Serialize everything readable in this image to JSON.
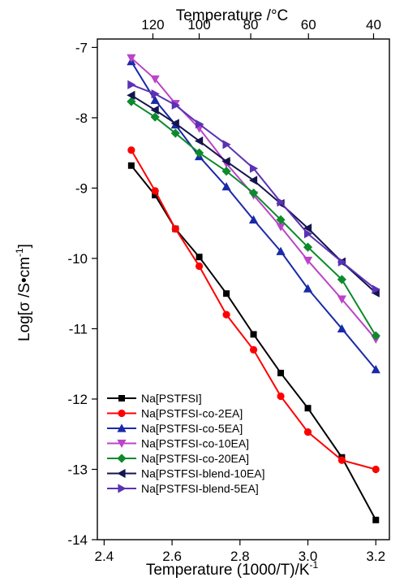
{
  "chart_data": {
    "type": "line",
    "title": "",
    "xlabel": "Temperature (1000/T)/K",
    "xlabel_superscript": "-1",
    "ylabel_main": "Log[σ /S•cm",
    "ylabel_superscript": "-1",
    "ylabel_close": "]",
    "top_xlabel": "Temperature /°C",
    "xlim": [
      2.38,
      3.24
    ],
    "ylim": [
      -14,
      -6.88
    ],
    "x_ticks": [
      2.4,
      2.6,
      2.8,
      3.0,
      3.2
    ],
    "x_tick_labels": [
      "2.4",
      "2.6",
      "2.8",
      "3.0",
      "3.2"
    ],
    "y_ticks": [
      -14,
      -13,
      -12,
      -11,
      -10,
      -9,
      -8,
      -7
    ],
    "y_tick_labels": [
      "-14",
      "-13",
      "-12",
      "-11",
      "-10",
      "-9",
      "-8",
      "-7"
    ],
    "top_ticks_celsius": [
      120,
      100,
      80,
      60,
      40
    ],
    "top_tick_labels": [
      "120",
      "100",
      "80",
      "60",
      "40"
    ],
    "grid": false,
    "legend_position": "bottom-left",
    "series": [
      {
        "name": "Na[PSTFSI]",
        "color": "#000000",
        "marker": "square",
        "x": [
          2.48,
          2.55,
          2.61,
          2.68,
          2.76,
          2.84,
          2.92,
          3.0,
          3.1,
          3.2
        ],
        "y": [
          -8.68,
          -9.1,
          -9.58,
          -9.98,
          -10.5,
          -11.08,
          -11.63,
          -12.13,
          -12.83,
          -13.72
        ]
      },
      {
        "name": "Na[PSTFSI-co-2EA]",
        "color": "#ff0000",
        "marker": "circle",
        "x": [
          2.48,
          2.55,
          2.61,
          2.68,
          2.76,
          2.84,
          2.92,
          3.0,
          3.1,
          3.2
        ],
        "y": [
          -8.46,
          -9.04,
          -9.58,
          -10.11,
          -10.8,
          -11.3,
          -11.96,
          -12.47,
          -12.87,
          -13.0
        ]
      },
      {
        "name": "Na[PSTFSI-co-5EA]",
        "color": "#1a2aa8",
        "marker": "triangle-up",
        "x": [
          2.48,
          2.55,
          2.61,
          2.68,
          2.76,
          2.84,
          2.92,
          3.0,
          3.1,
          3.2
        ],
        "y": [
          -7.2,
          -7.75,
          -8.1,
          -8.55,
          -8.98,
          -9.45,
          -9.9,
          -10.43,
          -11.0,
          -11.58
        ]
      },
      {
        "name": "Na[PSTFSI-co-10EA]",
        "color": "#bb44c8",
        "marker": "triangle-down",
        "x": [
          2.48,
          2.55,
          2.61,
          2.68,
          2.76,
          2.84,
          2.92,
          3.0,
          3.1,
          3.2
        ],
        "y": [
          -7.15,
          -7.45,
          -7.8,
          -8.15,
          -8.65,
          -9.1,
          -9.55,
          -10.03,
          -10.58,
          -11.15
        ]
      },
      {
        "name": "Na[PSTFSI-co-20EA]",
        "color": "#0d8a2c",
        "marker": "diamond",
        "x": [
          2.48,
          2.55,
          2.61,
          2.68,
          2.76,
          2.84,
          2.92,
          3.0,
          3.1,
          3.2
        ],
        "y": [
          -7.77,
          -7.99,
          -8.22,
          -8.5,
          -8.76,
          -9.07,
          -9.45,
          -9.84,
          -10.3,
          -11.1
        ]
      },
      {
        "name": "Na[PSTFSI-blend-10EA]",
        "color": "#141450",
        "marker": "triangle-left",
        "x": [
          2.48,
          2.55,
          2.61,
          2.68,
          2.76,
          2.84,
          2.92,
          3.0,
          3.1,
          3.2
        ],
        "y": [
          -7.68,
          -7.89,
          -8.08,
          -8.33,
          -8.62,
          -8.89,
          -9.22,
          -9.57,
          -10.05,
          -10.49
        ]
      },
      {
        "name": "Na[PSTFSI-blend-5EA]",
        "color": "#5a32b4",
        "marker": "triangle-right",
        "x": [
          2.48,
          2.55,
          2.61,
          2.68,
          2.76,
          2.84,
          2.92,
          3.0,
          3.1,
          3.2
        ],
        "y": [
          -7.53,
          -7.66,
          -7.82,
          -8.09,
          -8.38,
          -8.72,
          -9.2,
          -9.65,
          -10.05,
          -10.44
        ]
      }
    ]
  }
}
